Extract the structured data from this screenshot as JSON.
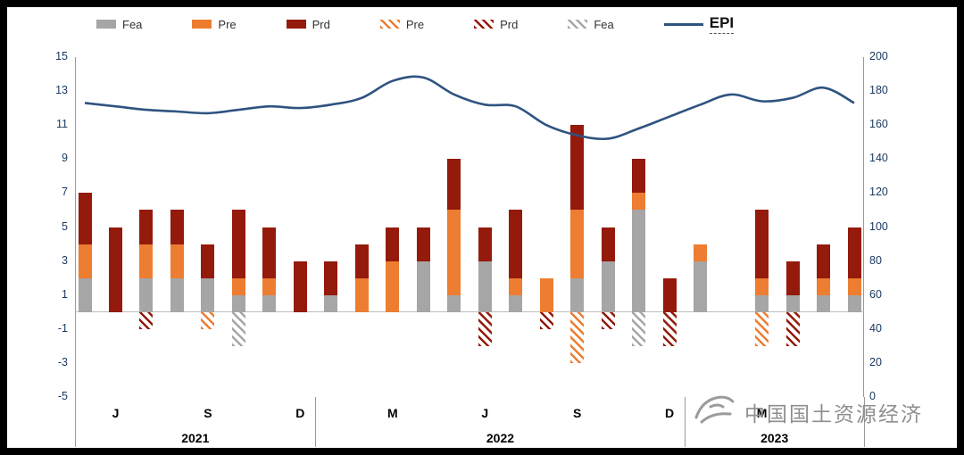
{
  "colors": {
    "fea": "#a6a6a6",
    "pre": "#ed7d31",
    "prd": "#941a0c",
    "epi": "#2f5380"
  },
  "legend": [
    {
      "label": "Fea",
      "type": "solid",
      "series": "fea"
    },
    {
      "label": "Pre",
      "type": "solid",
      "series": "pre"
    },
    {
      "label": "Prd",
      "type": "solid",
      "series": "prd"
    },
    {
      "label": "Pre",
      "type": "hatch",
      "series": "pre"
    },
    {
      "label": "Prd",
      "type": "hatch",
      "series": "prd"
    },
    {
      "label": "Fea",
      "type": "hatch",
      "series": "fea"
    },
    {
      "label": "EPI",
      "type": "line",
      "series": "epi"
    }
  ],
  "chart_data": {
    "type": "combo: stacked bar (left axis) + line (right axis)",
    "x": [
      "2021-05",
      "2021-06",
      "2021-07",
      "2021-08",
      "2021-09",
      "2021-10",
      "2021-11",
      "2021-12",
      "2022-01",
      "2022-02",
      "2022-03",
      "2022-04",
      "2022-05",
      "2022-06",
      "2022-07",
      "2022-08",
      "2022-09",
      "2022-10",
      "2022-11",
      "2022-12",
      "2023-01",
      "2023-02",
      "2023-03",
      "2023-04",
      "2023-05",
      "2023-06"
    ],
    "tick_labels": [
      {
        "index": 1,
        "label": "J"
      },
      {
        "index": 4,
        "label": "S"
      },
      {
        "index": 7,
        "label": "D"
      },
      {
        "index": 10,
        "label": "M"
      },
      {
        "index": 13,
        "label": "J"
      },
      {
        "index": 16,
        "label": "S"
      },
      {
        "index": 19,
        "label": "D"
      },
      {
        "index": 22,
        "label": "M"
      }
    ],
    "year_labels": [
      {
        "label": "2021",
        "from": 0,
        "to": 7
      },
      {
        "label": "2022",
        "from": 8,
        "to": 19
      },
      {
        "label": "2023",
        "from": 20,
        "to": 25
      }
    ],
    "series": [
      {
        "name": "Fea",
        "style": "solid",
        "key": "fea",
        "values": [
          2,
          0,
          2,
          2,
          2,
          1,
          1,
          0,
          1,
          0,
          0,
          3,
          1,
          3,
          1,
          0,
          2,
          3,
          6,
          0,
          3,
          0,
          1,
          1,
          1,
          1
        ]
      },
      {
        "name": "Pre",
        "style": "solid",
        "key": "pre",
        "values": [
          2,
          0,
          2,
          2,
          0,
          1,
          1,
          0,
          0,
          2,
          3,
          0,
          5,
          0,
          1,
          2,
          4,
          0,
          1,
          0,
          1,
          0,
          1,
          0,
          1,
          1
        ]
      },
      {
        "name": "Prd",
        "style": "solid",
        "key": "prd",
        "values": [
          3,
          5,
          2,
          2,
          2,
          4,
          3,
          3,
          2,
          2,
          2,
          2,
          3,
          2,
          4,
          0,
          5,
          2,
          2,
          2,
          0,
          0,
          4,
          2,
          2,
          3
        ]
      },
      {
        "name": "Fea_neg",
        "style": "hatch",
        "key": "fea",
        "values": [
          0,
          0,
          0,
          0,
          0,
          -2,
          0,
          0,
          0,
          0,
          0,
          0,
          0,
          0,
          0,
          0,
          0,
          0,
          -2,
          0,
          0,
          0,
          0,
          0,
          0,
          0
        ]
      },
      {
        "name": "Pre_neg",
        "style": "hatch",
        "key": "pre",
        "values": [
          0,
          0,
          0,
          0,
          -1,
          0,
          0,
          0,
          0,
          0,
          0,
          0,
          0,
          0,
          0,
          0,
          -3,
          0,
          0,
          0,
          0,
          0,
          -2,
          0,
          0,
          0
        ]
      },
      {
        "name": "Prd_neg",
        "style": "hatch",
        "key": "prd",
        "values": [
          0,
          0,
          -1,
          0,
          0,
          0,
          0,
          0,
          0,
          0,
          0,
          0,
          0,
          -2,
          0,
          -1,
          0,
          -1,
          0,
          -2,
          0,
          0,
          0,
          -2,
          0,
          0
        ]
      },
      {
        "name": "EPI",
        "style": "line",
        "key": "epi",
        "axis": "right",
        "values": [
          173,
          171,
          169,
          168,
          167,
          169,
          171,
          170,
          172,
          176,
          186,
          188,
          178,
          172,
          171,
          160,
          154,
          152,
          158,
          165,
          172,
          178,
          174,
          176,
          182,
          173
        ]
      }
    ],
    "left_axis": {
      "min": -5,
      "max": 15,
      "ticks": [
        15,
        13,
        11,
        9,
        7,
        5,
        3,
        1,
        -1,
        -3,
        -5
      ]
    },
    "right_axis": {
      "min": 0,
      "max": 200,
      "ticks": [
        200,
        180,
        160,
        140,
        120,
        100,
        80,
        60,
        40,
        20,
        0
      ]
    },
    "grid": false,
    "legend_position": "top"
  },
  "watermark": {
    "text": "中国国土资源经济"
  }
}
